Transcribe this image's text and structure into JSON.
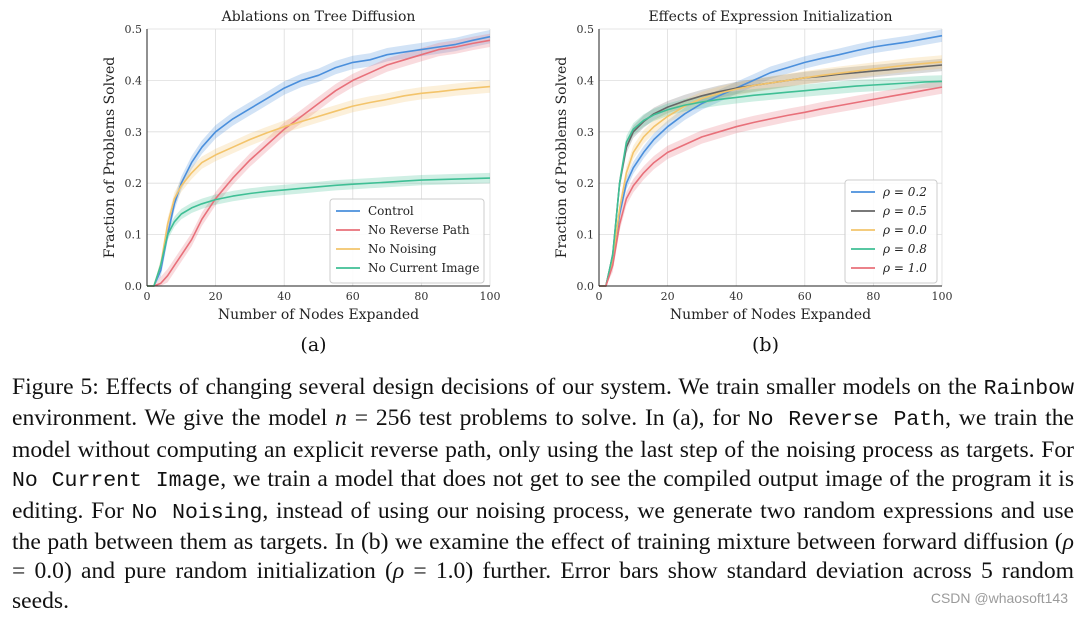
{
  "chart_data": [
    {
      "type": "line",
      "panel_label": "(a)",
      "title": "Ablations on Tree Diffusion",
      "xlabel": "Number of Nodes Expanded",
      "ylabel": "Fraction of Problems Solved",
      "xlim": [
        0,
        100
      ],
      "ylim": [
        0,
        0.5
      ],
      "xticks": [
        "0",
        "20",
        "40",
        "60",
        "80",
        "100"
      ],
      "yticks": [
        "0.0",
        "0.1",
        "0.2",
        "0.3",
        "0.4",
        "0.5"
      ],
      "legend_position": "lower-right",
      "series": [
        {
          "name": "Control",
          "color": "#4a8fdc",
          "x": [
            0,
            2,
            4,
            6,
            8,
            10,
            13,
            16,
            20,
            25,
            30,
            35,
            40,
            45,
            50,
            55,
            60,
            65,
            70,
            75,
            80,
            85,
            90,
            95,
            100
          ],
          "y": [
            0,
            0,
            0.03,
            0.1,
            0.16,
            0.2,
            0.24,
            0.27,
            0.3,
            0.325,
            0.345,
            0.365,
            0.385,
            0.4,
            0.41,
            0.425,
            0.435,
            0.44,
            0.45,
            0.455,
            0.46,
            0.465,
            0.47,
            0.478,
            0.485
          ],
          "band": 0.013
        },
        {
          "name": "No Reverse Path",
          "color": "#e8707a",
          "x": [
            0,
            2,
            4,
            6,
            8,
            10,
            13,
            16,
            20,
            25,
            30,
            35,
            40,
            45,
            50,
            55,
            60,
            65,
            70,
            75,
            80,
            85,
            90,
            95,
            100
          ],
          "y": [
            0,
            0,
            0.005,
            0.02,
            0.04,
            0.06,
            0.09,
            0.13,
            0.17,
            0.21,
            0.245,
            0.275,
            0.305,
            0.33,
            0.355,
            0.38,
            0.4,
            0.415,
            0.43,
            0.44,
            0.45,
            0.46,
            0.465,
            0.472,
            0.478
          ],
          "band": 0.013
        },
        {
          "name": "No Noising",
          "color": "#f3c46b",
          "x": [
            0,
            2,
            4,
            6,
            8,
            10,
            13,
            16,
            20,
            25,
            30,
            35,
            40,
            45,
            50,
            55,
            60,
            65,
            70,
            75,
            80,
            85,
            90,
            95,
            100
          ],
          "y": [
            0,
            0,
            0.04,
            0.12,
            0.17,
            0.195,
            0.22,
            0.24,
            0.255,
            0.27,
            0.285,
            0.298,
            0.31,
            0.32,
            0.33,
            0.34,
            0.35,
            0.357,
            0.363,
            0.37,
            0.375,
            0.378,
            0.382,
            0.385,
            0.388
          ],
          "band": 0.012
        },
        {
          "name": "No Current Image",
          "color": "#3fbf95",
          "x": [
            0,
            2,
            4,
            6,
            8,
            10,
            13,
            16,
            20,
            25,
            30,
            35,
            40,
            45,
            50,
            55,
            60,
            65,
            70,
            75,
            80,
            85,
            90,
            95,
            100
          ],
          "y": [
            0,
            0,
            0.04,
            0.1,
            0.125,
            0.14,
            0.152,
            0.16,
            0.168,
            0.175,
            0.18,
            0.184,
            0.187,
            0.19,
            0.193,
            0.196,
            0.198,
            0.2,
            0.202,
            0.204,
            0.206,
            0.207,
            0.208,
            0.209,
            0.21
          ],
          "band": 0.01
        }
      ]
    },
    {
      "type": "line",
      "panel_label": "(b)",
      "title": "Effects of Expression Initialization",
      "xlabel": "Number of Nodes Expanded",
      "ylabel": "Fraction of Problems Solved",
      "xlim": [
        0,
        100
      ],
      "ylim": [
        0,
        0.5
      ],
      "xticks": [
        "0",
        "20",
        "40",
        "60",
        "80",
        "100"
      ],
      "yticks": [
        "0.0",
        "0.1",
        "0.2",
        "0.3",
        "0.4",
        "0.5"
      ],
      "legend_position": "lower-right",
      "series": [
        {
          "name": "ρ = 0.2",
          "color": "#4a8fdc",
          "x": [
            0,
            2,
            4,
            6,
            8,
            10,
            13,
            16,
            20,
            25,
            30,
            35,
            40,
            45,
            50,
            55,
            60,
            65,
            70,
            75,
            80,
            85,
            90,
            95,
            100
          ],
          "y": [
            0,
            0,
            0.05,
            0.14,
            0.2,
            0.23,
            0.26,
            0.285,
            0.31,
            0.335,
            0.355,
            0.37,
            0.385,
            0.4,
            0.415,
            0.425,
            0.435,
            0.443,
            0.45,
            0.458,
            0.465,
            0.47,
            0.475,
            0.481,
            0.487
          ],
          "band": 0.012
        },
        {
          "name": "ρ = 0.5",
          "color": "#666666",
          "x": [
            0,
            2,
            4,
            6,
            8,
            10,
            13,
            16,
            20,
            25,
            30,
            35,
            40,
            45,
            50,
            55,
            60,
            65,
            70,
            75,
            80,
            85,
            90,
            95,
            100
          ],
          "y": [
            0,
            0,
            0.06,
            0.2,
            0.27,
            0.3,
            0.32,
            0.335,
            0.348,
            0.36,
            0.37,
            0.378,
            0.385,
            0.39,
            0.395,
            0.4,
            0.405,
            0.408,
            0.412,
            0.415,
            0.418,
            0.421,
            0.424,
            0.427,
            0.43
          ],
          "band": 0.012
        },
        {
          "name": "ρ = 0.0",
          "color": "#f3c46b",
          "x": [
            0,
            2,
            4,
            6,
            8,
            10,
            13,
            16,
            20,
            25,
            30,
            35,
            40,
            45,
            50,
            55,
            60,
            65,
            70,
            75,
            80,
            85,
            90,
            95,
            100
          ],
          "y": [
            0,
            0,
            0.05,
            0.15,
            0.22,
            0.26,
            0.29,
            0.31,
            0.33,
            0.35,
            0.365,
            0.375,
            0.383,
            0.39,
            0.395,
            0.4,
            0.405,
            0.41,
            0.414,
            0.418,
            0.422,
            0.426,
            0.43,
            0.433,
            0.436
          ],
          "band": 0.013
        },
        {
          "name": "ρ = 0.8",
          "color": "#3fbf95",
          "x": [
            0,
            2,
            4,
            6,
            8,
            10,
            13,
            16,
            20,
            25,
            30,
            35,
            40,
            45,
            50,
            55,
            60,
            65,
            70,
            75,
            80,
            85,
            90,
            95,
            100
          ],
          "y": [
            0,
            0,
            0.06,
            0.2,
            0.28,
            0.305,
            0.322,
            0.333,
            0.343,
            0.352,
            0.358,
            0.363,
            0.367,
            0.371,
            0.374,
            0.377,
            0.38,
            0.383,
            0.386,
            0.389,
            0.391,
            0.393,
            0.395,
            0.397,
            0.398
          ],
          "band": 0.012
        },
        {
          "name": "ρ = 1.0",
          "color": "#e8707a",
          "x": [
            0,
            2,
            4,
            6,
            8,
            10,
            13,
            16,
            20,
            25,
            30,
            35,
            40,
            45,
            50,
            55,
            60,
            65,
            70,
            75,
            80,
            85,
            90,
            95,
            100
          ],
          "y": [
            0,
            0,
            0.04,
            0.12,
            0.17,
            0.195,
            0.22,
            0.24,
            0.26,
            0.275,
            0.29,
            0.3,
            0.31,
            0.318,
            0.325,
            0.332,
            0.338,
            0.345,
            0.351,
            0.357,
            0.363,
            0.369,
            0.375,
            0.381,
            0.387
          ],
          "band": 0.013
        }
      ]
    }
  ],
  "caption": {
    "s1": "Figure 5: Effects of changing several design decisions of our system. We train smaller models on the ",
    "c1": "Rainbow",
    "s2": " environment. We give the model ",
    "m1": "n",
    "s3": " = 256 test problems to solve. In (a), for ",
    "c2": "No Reverse Path",
    "s4": ", we train the model without computing an explicit reverse path, only using the last step of the noising process as targets. For ",
    "c3": "No Current Image",
    "s5": ", we train a model that does not get to see the compiled output image of the program it is editing. For ",
    "c4": "No Noising",
    "s6": ", instead of using our noising process, we generate two random expressions and use the path between them as targets. In (b) we examine the effect of training mixture between forward diffusion (",
    "m2": "ρ",
    "s7": " = 0.0) and pure random initialization (",
    "m3": "ρ",
    "s8": " = 1.0) further. Error bars show standard deviation across 5 random seeds."
  },
  "watermark": "CSDN @whaosoft143"
}
